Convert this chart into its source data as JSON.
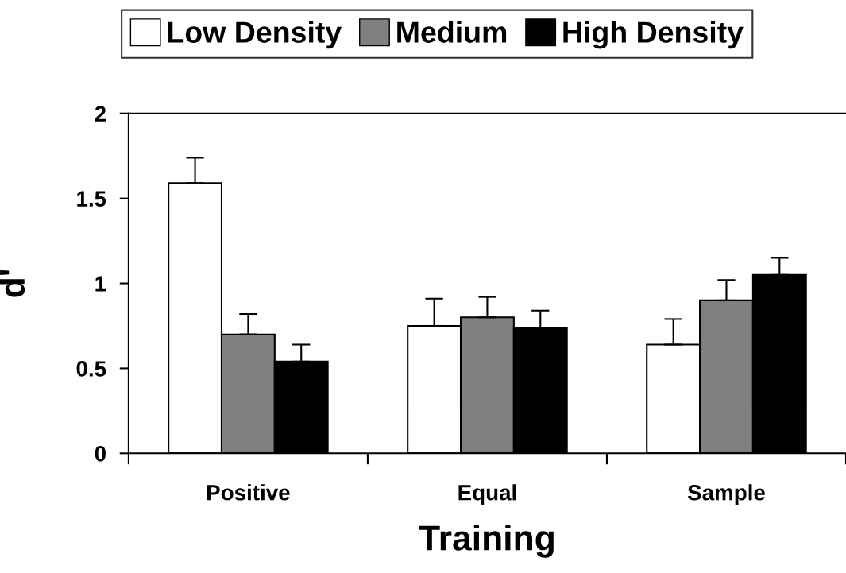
{
  "chart_data": {
    "type": "bar",
    "xlabel": "Training",
    "ylabel": "d'",
    "categories": [
      "Positive",
      "Equal",
      "Sample"
    ],
    "series": [
      {
        "name": "Low Density",
        "color": "#ffffff",
        "values": [
          1.59,
          0.75,
          0.64
        ],
        "errors": [
          [
            1.59,
            1.74
          ],
          [
            0.75,
            0.91
          ],
          [
            0.64,
            0.79
          ]
        ]
      },
      {
        "name": "Medium",
        "color": "#808080",
        "values": [
          0.7,
          0.8,
          0.9
        ],
        "errors": [
          [
            0.7,
            0.82
          ],
          [
            0.8,
            0.92
          ],
          [
            0.9,
            1.02
          ]
        ]
      },
      {
        "name": "High Density",
        "color": "#000000",
        "values": [
          0.54,
          0.74,
          1.05
        ],
        "errors": [
          [
            0.54,
            0.64
          ],
          [
            0.74,
            0.84
          ],
          [
            1.05,
            1.15
          ]
        ]
      }
    ],
    "ylim": [
      0,
      2
    ],
    "yticks": [
      0,
      {
        "value": 0.5,
        "label": "0.5"
      },
      1,
      {
        "value": 1.5,
        "label": "1.5"
      },
      2
    ],
    "grid": false,
    "legend": "top"
  }
}
